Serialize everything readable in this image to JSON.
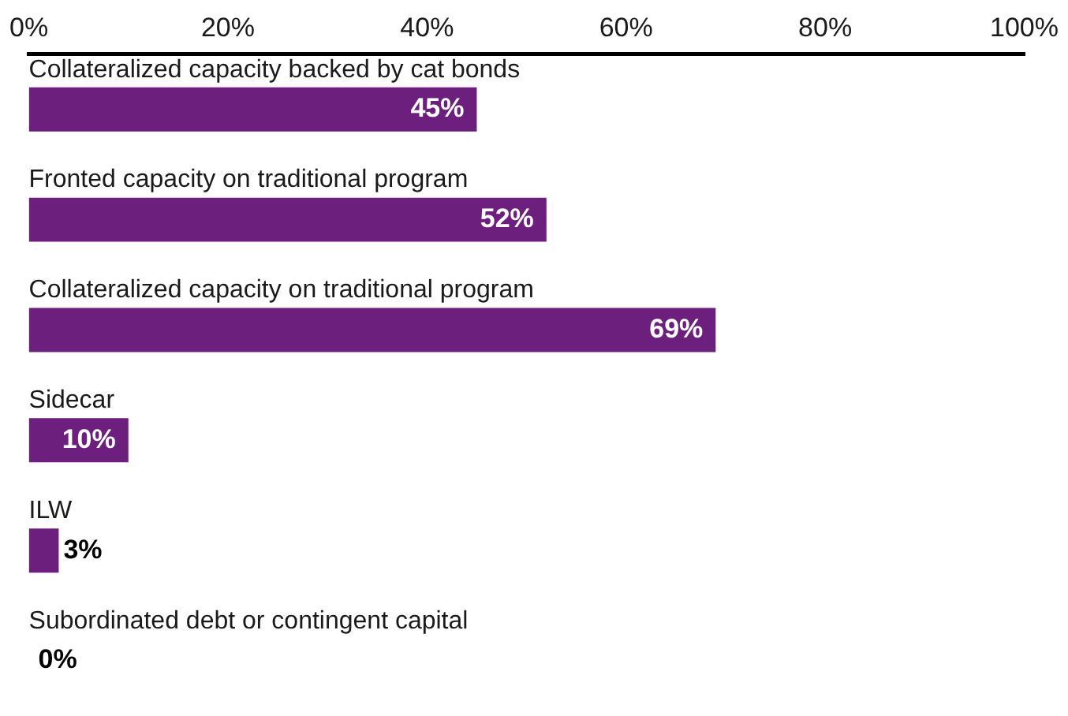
{
  "chart_data": {
    "type": "bar",
    "orientation": "horizontal",
    "categories": [
      "Collateralized capacity backed by cat bonds",
      "Fronted capacity on traditional program",
      "Collateralized capacity on traditional program",
      "Sidecar",
      "ILW",
      "Subordinated debt or contingent capital"
    ],
    "values": [
      45,
      52,
      69,
      10,
      3,
      0
    ],
    "value_labels": [
      "45%",
      "52%",
      "69%",
      "10%",
      "3%",
      "0%"
    ],
    "color": "#6d1f7e",
    "xlim": [
      0,
      100
    ],
    "xticks": [
      {
        "value": 0,
        "label": "0%"
      },
      {
        "value": 20,
        "label": "20%"
      },
      {
        "value": 40,
        "label": "40%"
      },
      {
        "value": 60,
        "label": "60%"
      },
      {
        "value": 80,
        "label": "80%"
      },
      {
        "value": 100,
        "label": "100%"
      }
    ],
    "grid": false,
    "legend": false
  }
}
